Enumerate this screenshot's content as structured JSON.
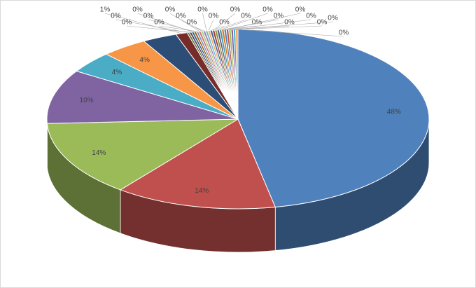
{
  "chart_data": {
    "type": "pie",
    "values": [
      48,
      14,
      14,
      10,
      4,
      4,
      3,
      1,
      0.2,
      0.2,
      0.2,
      0.2,
      0.2,
      0.2,
      0.2,
      0.2,
      0.2,
      0.2,
      0.2,
      0.2,
      0.2,
      0.2,
      0.2,
      0.2,
      0.2,
      0.2,
      0.2,
      0.2,
      0.2,
      0.2
    ],
    "value_labels": [
      "48%",
      "14%",
      "14%",
      "10%",
      "4%",
      "4%",
      null,
      "1%",
      "0%",
      "0%",
      "0%",
      "0%",
      "0%",
      "0%",
      "0%",
      "0%",
      "0%",
      "0%",
      "0%",
      "0%",
      "0%",
      "0%",
      "0%",
      "0%",
      "0%",
      "0%",
      "0%",
      "0%",
      "0%",
      "0%"
    ],
    "colors": [
      "#4f81bd",
      "#c0504d",
      "#9bbb59",
      "#8064a2",
      "#4bacc6",
      "#f79646",
      "#2c4d75",
      "#772c2a",
      "#5f7530",
      "#4d3b62",
      "#276a7c",
      "#b65708",
      "#729aca",
      "#cd7371",
      "#afc97a",
      "#9983b5",
      "#6fbdd1",
      "#f9ab6b",
      "#3a679c",
      "#9e3b38",
      "#7e9c40",
      "#664f84",
      "#359aa8",
      "#e0750b",
      "#4f81bd",
      "#c0504d",
      "#9bbb59",
      "#8064a2",
      "#4bacc6",
      "#f79646"
    ]
  }
}
